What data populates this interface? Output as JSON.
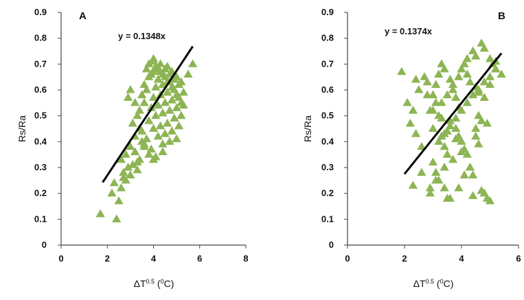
{
  "chart_data": [
    {
      "type": "scatter",
      "panel_label": "A",
      "equation": "y = 0.1348x",
      "slope": 0.1348,
      "ylabel": "Rs/Ra",
      "xlabel": "ΔT",
      "xlabel_sup": "0.5",
      "xlabel_unit_open": " (",
      "xlabel_unit_sup": "0",
      "xlabel_unit_close": "C)",
      "xlim": [
        0,
        8
      ],
      "ylim": [
        0,
        0.9
      ],
      "xticks": [
        "0",
        "2",
        "4",
        "6",
        "8"
      ],
      "yticks": [
        "0",
        "0.1",
        "0.2",
        "0.3",
        "0.4",
        "0.5",
        "0.6",
        "0.7",
        "0.8",
        "0.9"
      ],
      "xtick_values": [
        0,
        2,
        4,
        6,
        8
      ],
      "ytick_values": [
        0,
        0.1,
        0.2,
        0.3,
        0.4,
        0.5,
        0.6,
        0.7,
        0.8,
        0.9
      ],
      "trendline_x": [
        1.8,
        5.7
      ],
      "marker_color": "#8db554",
      "line_color": "#000000",
      "x": [
        1.7,
        2.4,
        2.5,
        2.2,
        2.3,
        2.6,
        2.7,
        2.8,
        2.9,
        3.0,
        2.6,
        2.8,
        3.1,
        3.3,
        3.0,
        3.2,
        3.4,
        3.5,
        3.2,
        3.4,
        3.6,
        3.8,
        3.1,
        3.3,
        3.5,
        3.7,
        3.9,
        4.1,
        3.4,
        3.6,
        3.8,
        4.0,
        4.2,
        4.4,
        3.5,
        3.7,
        3.9,
        4.1,
        4.3,
        4.5,
        4.7,
        3.6,
        3.8,
        4.0,
        4.2,
        4.4,
        4.6,
        4.8,
        5.0,
        3.7,
        3.9,
        4.1,
        4.3,
        4.5,
        4.7,
        4.9,
        5.1,
        3.8,
        4.0,
        4.2,
        4.4,
        4.6,
        4.8,
        5.0,
        5.2,
        4.0,
        4.2,
        4.4,
        4.6,
        4.8,
        5.0,
        5.2,
        4.1,
        4.3,
        4.5,
        4.7,
        4.9,
        5.1,
        5.3,
        4.3,
        4.5,
        4.7,
        4.9,
        5.1,
        5.3,
        4.6,
        4.8,
        5.0,
        5.2,
        5.7,
        4.0,
        5.5,
        3.0,
        2.9,
        3.2,
        2.7,
        3.3,
        3.6,
        4.0,
        4.4
      ],
      "y": [
        0.12,
        0.1,
        0.17,
        0.2,
        0.24,
        0.22,
        0.28,
        0.25,
        0.3,
        0.27,
        0.33,
        0.35,
        0.31,
        0.29,
        0.38,
        0.36,
        0.33,
        0.4,
        0.42,
        0.45,
        0.38,
        0.35,
        0.47,
        0.5,
        0.44,
        0.41,
        0.37,
        0.34,
        0.52,
        0.55,
        0.48,
        0.45,
        0.42,
        0.39,
        0.58,
        0.6,
        0.53,
        0.5,
        0.46,
        0.43,
        0.4,
        0.62,
        0.65,
        0.57,
        0.54,
        0.51,
        0.47,
        0.44,
        0.41,
        0.68,
        0.66,
        0.61,
        0.58,
        0.55,
        0.52,
        0.49,
        0.46,
        0.7,
        0.67,
        0.64,
        0.62,
        0.59,
        0.56,
        0.53,
        0.5,
        0.71,
        0.68,
        0.66,
        0.63,
        0.61,
        0.58,
        0.55,
        0.69,
        0.67,
        0.65,
        0.63,
        0.6,
        0.57,
        0.54,
        0.7,
        0.68,
        0.66,
        0.64,
        0.62,
        0.59,
        0.69,
        0.67,
        0.65,
        0.63,
        0.7,
        0.72,
        0.66,
        0.6,
        0.57,
        0.55,
        0.26,
        0.32,
        0.39,
        0.33,
        0.36
      ]
    },
    {
      "type": "scatter",
      "panel_label": "B",
      "equation": "y = 0.1374x",
      "slope": 0.1374,
      "ylabel": "Rs/Ra",
      "xlabel": "ΔT",
      "xlabel_sup": "0.5",
      "xlabel_unit_open": " (",
      "xlabel_unit_sup": "0",
      "xlabel_unit_close": "C)",
      "xlim": [
        0,
        6
      ],
      "ylim": [
        0,
        0.9
      ],
      "xticks": [
        "0",
        "2",
        "4",
        "6"
      ],
      "yticks": [
        "0",
        "0.1",
        "0.2",
        "0.3",
        "0.4",
        "0.5",
        "0.6",
        "0.7",
        "0.8",
        "0.9"
      ],
      "xtick_values": [
        0,
        2,
        4,
        6
      ],
      "ytick_values": [
        0,
        0.1,
        0.2,
        0.3,
        0.4,
        0.5,
        0.6,
        0.7,
        0.8,
        0.9
      ],
      "trendline_x": [
        2.0,
        5.4
      ],
      "marker_color": "#8db554",
      "line_color": "#000000",
      "x": [
        1.9,
        2.1,
        2.3,
        2.2,
        2.4,
        2.6,
        2.7,
        2.8,
        2.5,
        2.9,
        3.0,
        3.1,
        3.2,
        3.0,
        3.3,
        3.4,
        3.5,
        3.1,
        3.2,
        3.3,
        3.4,
        3.6,
        3.7,
        3.8,
        3.9,
        3.0,
        3.1,
        3.2,
        3.4,
        3.5,
        3.6,
        3.8,
        3.9,
        4.0,
        4.1,
        4.2,
        4.3,
        4.4,
        4.5,
        4.6,
        4.7,
        4.8,
        4.9,
        5.0,
        4.1,
        4.2,
        4.4,
        4.5,
        4.7,
        4.8,
        5.0,
        5.1,
        5.2,
        5.4,
        3.3,
        3.5,
        3.7,
        3.9,
        4.0,
        4.2,
        4.3,
        4.5,
        4.6,
        4.8,
        3.2,
        3.4,
        3.6,
        3.8,
        4.0,
        4.2,
        4.4,
        4.6,
        4.8,
        5.0,
        5.2,
        2.3,
        2.6,
        2.9,
        3.1,
        3.4,
        3.6,
        3.9,
        4.1,
        4.4,
        4.7,
        5.0,
        2.9,
        3.3,
        3.5,
        3.8,
        4.0,
        4.5,
        4.9,
        5.2,
        2.4,
        2.8,
        3.0,
        3.7,
        4.3,
        4.6
      ],
      "y": [
        0.67,
        0.55,
        0.52,
        0.47,
        0.43,
        0.38,
        0.65,
        0.63,
        0.6,
        0.22,
        0.58,
        0.55,
        0.5,
        0.45,
        0.42,
        0.38,
        0.35,
        0.62,
        0.66,
        0.7,
        0.68,
        0.64,
        0.6,
        0.57,
        0.53,
        0.32,
        0.28,
        0.25,
        0.22,
        0.18,
        0.48,
        0.45,
        0.42,
        0.4,
        0.37,
        0.35,
        0.3,
        0.27,
        0.45,
        0.5,
        0.48,
        0.2,
        0.18,
        0.62,
        0.7,
        0.72,
        0.75,
        0.73,
        0.78,
        0.76,
        0.72,
        0.7,
        0.68,
        0.66,
        0.55,
        0.58,
        0.62,
        0.65,
        0.68,
        0.66,
        0.63,
        0.61,
        0.59,
        0.57,
        0.4,
        0.43,
        0.46,
        0.49,
        0.52,
        0.55,
        0.58,
        0.6,
        0.63,
        0.65,
        0.68,
        0.23,
        0.28,
        0.2,
        0.25,
        0.3,
        0.18,
        0.22,
        0.27,
        0.19,
        0.21,
        0.17,
        0.52,
        0.49,
        0.44,
        0.41,
        0.36,
        0.42,
        0.47,
        0.71,
        0.64,
        0.58,
        0.52,
        0.33,
        0.3,
        0.39
      ]
    }
  ]
}
